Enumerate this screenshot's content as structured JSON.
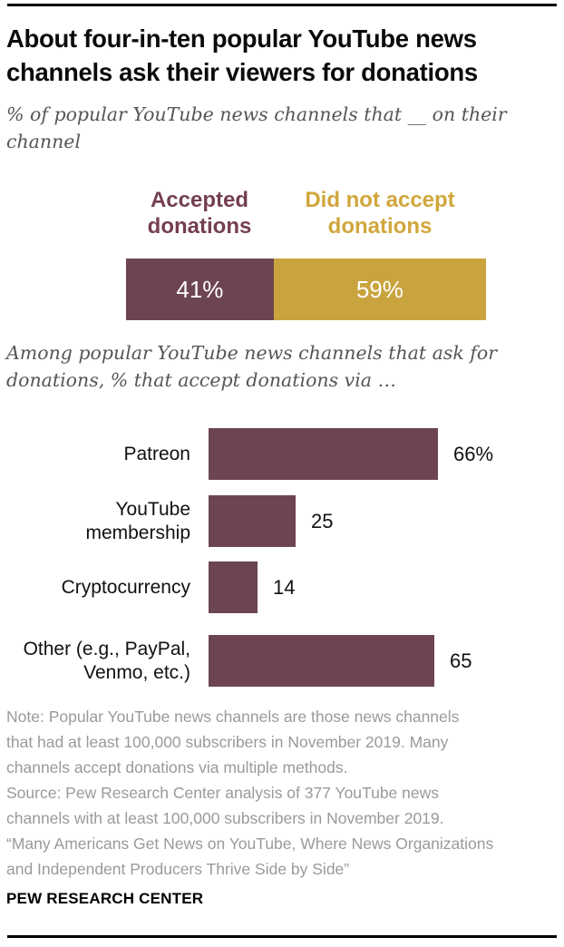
{
  "header": {
    "title": "About four-in-ten popular YouTube news channels ask their viewers for donations",
    "title_lines": [
      "About four-in-ten popular YouTube news",
      "channels ask their viewers for donations"
    ],
    "subtitle": "% of popular YouTube news channels that __ on their channel",
    "subtitle_lines": [
      "% of popular YouTube news channels that __ on their",
      "channel"
    ]
  },
  "chart_data": [
    {
      "type": "bar",
      "subtype": "horizontal-stacked",
      "title": "% of popular YouTube news channels that __ on their channel",
      "categories": [
        "Accepted donations",
        "Did not accept donations"
      ],
      "values": [
        41,
        59
      ],
      "value_labels": [
        "41%",
        "59%"
      ],
      "colors": [
        "#6d4552",
        "#c9a43e"
      ],
      "legend_position": "top",
      "xlim": [
        0,
        100
      ]
    },
    {
      "type": "bar",
      "subtype": "horizontal",
      "title": "Among popular YouTube news channels that ask for donations, % that accept donations via …",
      "title_lines": [
        "Among popular YouTube news channels that ask for",
        "donations, % that accept donations via …"
      ],
      "categories": [
        "Patreon",
        "YouTube membership",
        "Cryptocurrency",
        "Other (e.g., PayPal, Venmo, etc.)"
      ],
      "values": [
        66,
        25,
        14,
        65
      ],
      "value_labels": [
        "66%",
        "25",
        "14",
        "65"
      ],
      "bar_color": "#6d4552",
      "xlim": [
        0,
        100
      ],
      "grid": false,
      "legend_position": "none"
    }
  ],
  "footer": {
    "note": "Note: Popular YouTube news channels are those news channels that had at least 100,000 subscribers in November 2019. Many channels accept donations via multiple methods.",
    "source": "Source: Pew Research Center analysis of 377 YouTube news channels with at least 100,000 subscribers in November 2019.",
    "quote": "“Many Americans Get News on YouTube, Where News Organizations and Independent Producers Thrive Side by Side”",
    "note_lines": [
      "Note: Popular YouTube news channels are those news channels",
      "that had at least 100,000 subscribers in November 2019. Many",
      "channels accept donations via multiple methods.",
      "Source: Pew Research Center analysis of 377 YouTube news",
      "channels with at least 100,000 subscribers in November 2019.",
      "“Many Americans Get News on YouTube, Where News Organizations",
      "and Independent Producers Thrive Side by Side”"
    ],
    "brand": "PEW RESEARCH CENTER"
  },
  "colors": {
    "maroon_bar": "#6d4552",
    "maroon_text": "#743f50",
    "gold_bar": "#c9a43e",
    "gold_text": "#d0a73c",
    "note_gray": "#9a9a9a",
    "subtitle_gray": "#56565a",
    "title_black": "#0b0b0b"
  }
}
